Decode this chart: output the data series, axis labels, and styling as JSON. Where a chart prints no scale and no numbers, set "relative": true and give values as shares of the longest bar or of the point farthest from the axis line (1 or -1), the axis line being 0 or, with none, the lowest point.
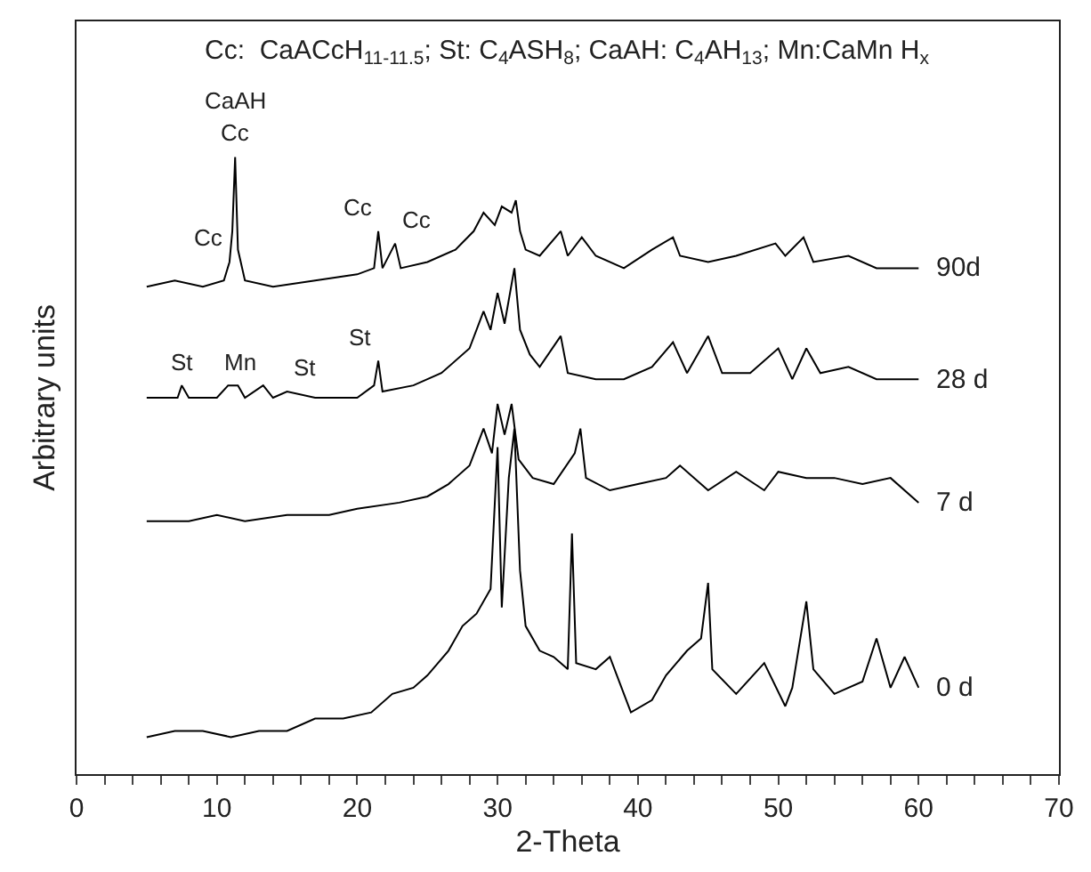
{
  "chart_data": {
    "type": "line",
    "relative": true,
    "xlabel": "2-Theta",
    "ylabel": "Arbitrary units",
    "xlim": [
      0,
      70
    ],
    "xticks": [
      0,
      {
        "value": 2,
        "label": null
      },
      {
        "value": 4,
        "label": null
      },
      {
        "value": 6,
        "label": null
      },
      {
        "value": 8,
        "label": null
      },
      10,
      {
        "value": 12,
        "label": null
      },
      {
        "value": 14,
        "label": null
      },
      {
        "value": 16,
        "label": null
      },
      {
        "value": 18,
        "label": null
      },
      20,
      {
        "value": 22,
        "label": null
      },
      {
        "value": 24,
        "label": null
      },
      {
        "value": 26,
        "label": null
      },
      {
        "value": 28,
        "label": null
      },
      30,
      {
        "value": 32,
        "label": null
      },
      {
        "value": 34,
        "label": null
      },
      {
        "value": 36,
        "label": null
      },
      {
        "value": 38,
        "label": null
      },
      40,
      {
        "value": 42,
        "label": null
      },
      {
        "value": 44,
        "label": null
      },
      {
        "value": 46,
        "label": null
      },
      {
        "value": 48,
        "label": null
      },
      50,
      {
        "value": 52,
        "label": null
      },
      {
        "value": 54,
        "label": null
      },
      {
        "value": 56,
        "label": null
      },
      {
        "value": 58,
        "label": null
      },
      60,
      {
        "value": 62,
        "label": null
      },
      {
        "value": 64,
        "label": null
      },
      {
        "value": 66,
        "label": null
      },
      {
        "value": 68,
        "label": null
      },
      70
    ],
    "tick_labels": "x",
    "legend": false,
    "marker": "none",
    "line_style": "solid",
    "series": [
      {
        "name": "90d",
        "color": "#000000",
        "x": [
          5,
          7,
          9,
          10.5,
          10.9,
          11.1,
          11.3,
          11.5,
          12,
          14,
          17,
          20,
          21.2,
          21.5,
          21.8,
          22.7,
          23.1,
          25,
          27,
          28.3,
          29,
          29.8,
          30.3,
          31,
          31.3,
          31.6,
          32,
          33,
          34.5,
          35,
          36,
          37,
          39,
          41,
          42.5,
          43,
          45,
          47,
          49.8,
          50.5,
          51.8,
          52.5,
          55,
          57,
          60
        ],
        "values": [
          0.79,
          0.8,
          0.79,
          0.8,
          0.83,
          0.88,
          1.0,
          0.85,
          0.8,
          0.79,
          0.8,
          0.81,
          0.82,
          0.88,
          0.82,
          0.86,
          0.82,
          0.83,
          0.85,
          0.88,
          0.91,
          0.89,
          0.92,
          0.91,
          0.93,
          0.88,
          0.85,
          0.84,
          0.88,
          0.84,
          0.87,
          0.84,
          0.82,
          0.85,
          0.87,
          0.84,
          0.83,
          0.84,
          0.86,
          0.84,
          0.87,
          0.83,
          0.84,
          0.82,
          0.82
        ]
      },
      {
        "name": "28 d",
        "color": "#000000",
        "x": [
          5,
          7.2,
          7.5,
          8,
          10,
          10.8,
          11.5,
          12,
          13.3,
          14,
          15,
          17,
          20,
          21.2,
          21.5,
          21.8,
          24,
          26,
          28,
          29,
          29.5,
          30,
          30.5,
          31.2,
          31.6,
          32.3,
          33,
          34.5,
          35,
          37,
          39,
          41,
          42.5,
          43.5,
          45,
          46,
          48,
          50,
          51,
          52,
          53,
          55,
          57,
          60
        ],
        "values": [
          0.61,
          0.61,
          0.63,
          0.61,
          0.61,
          0.63,
          0.63,
          0.61,
          0.63,
          0.61,
          0.62,
          0.61,
          0.61,
          0.63,
          0.67,
          0.62,
          0.63,
          0.65,
          0.69,
          0.75,
          0.72,
          0.78,
          0.73,
          0.82,
          0.72,
          0.68,
          0.66,
          0.71,
          0.65,
          0.64,
          0.64,
          0.66,
          0.7,
          0.65,
          0.71,
          0.65,
          0.65,
          0.69,
          0.64,
          0.69,
          0.65,
          0.66,
          0.64,
          0.64
        ]
      },
      {
        "name": "7 d",
        "color": "#000000",
        "x": [
          5,
          8,
          10,
          12,
          15,
          18,
          20,
          23,
          25,
          26.5,
          28,
          29,
          29.6,
          30,
          30.5,
          31,
          31.5,
          32.5,
          34,
          35.5,
          35.9,
          36.3,
          38,
          40,
          42,
          43,
          45,
          47,
          49,
          50,
          52,
          54,
          56,
          58,
          60
        ],
        "values": [
          0.41,
          0.41,
          0.42,
          0.41,
          0.42,
          0.42,
          0.43,
          0.44,
          0.45,
          0.47,
          0.5,
          0.56,
          0.52,
          0.6,
          0.55,
          0.6,
          0.51,
          0.48,
          0.47,
          0.52,
          0.56,
          0.48,
          0.46,
          0.47,
          0.48,
          0.5,
          0.46,
          0.49,
          0.46,
          0.49,
          0.48,
          0.48,
          0.47,
          0.48,
          0.44
        ]
      },
      {
        "name": "0 d",
        "color": "#000000",
        "x": [
          5,
          7,
          9,
          11,
          13,
          15,
          17,
          19,
          21,
          22.5,
          24,
          25,
          26.5,
          27.5,
          28.5,
          29.5,
          30,
          30.3,
          30.8,
          31.2,
          31.6,
          32,
          33,
          34,
          35,
          35.3,
          35.6,
          37,
          38,
          39.5,
          41,
          42,
          43.5,
          44.5,
          45,
          45.3,
          47,
          49,
          50.5,
          51,
          52,
          52.5,
          54,
          56,
          57,
          58,
          59,
          60
        ],
        "values": [
          0.06,
          0.07,
          0.07,
          0.06,
          0.07,
          0.07,
          0.09,
          0.09,
          0.1,
          0.13,
          0.14,
          0.16,
          0.2,
          0.24,
          0.26,
          0.3,
          0.53,
          0.27,
          0.48,
          0.56,
          0.33,
          0.24,
          0.2,
          0.19,
          0.17,
          0.39,
          0.18,
          0.17,
          0.19,
          0.1,
          0.12,
          0.16,
          0.2,
          0.22,
          0.31,
          0.17,
          0.13,
          0.18,
          0.11,
          0.14,
          0.28,
          0.17,
          0.13,
          0.15,
          0.22,
          0.14,
          0.19,
          0.14
        ]
      }
    ],
    "annotations": [
      "Cc:  CaACcH$_{11-11.5}$; St: C$_{4}$ASH$_{8}$; CaAH: C$_{4}$AH$_{13}$; Mn:CaMn H$_{x}$",
      {
        "text": "CaAH",
        "x": 11.3,
        "y": 1.0
      },
      {
        "text": "Cc",
        "x": 11.3,
        "y": 1.0
      },
      {
        "text": "Cc",
        "x": 10.9,
        "y": 0.83
      },
      {
        "text": "Cc",
        "x": 21.5,
        "y": 0.88
      },
      {
        "text": "Cc",
        "x": 22.7,
        "y": 0.86
      },
      {
        "text": "St",
        "x": 7.5,
        "y": 0.63
      },
      {
        "text": "Mn",
        "x": 13.3,
        "y": 0.63
      },
      {
        "text": "St",
        "x": 15,
        "y": 0.62
      },
      {
        "text": "St",
        "x": 21.5,
        "y": 0.67
      }
    ]
  }
}
